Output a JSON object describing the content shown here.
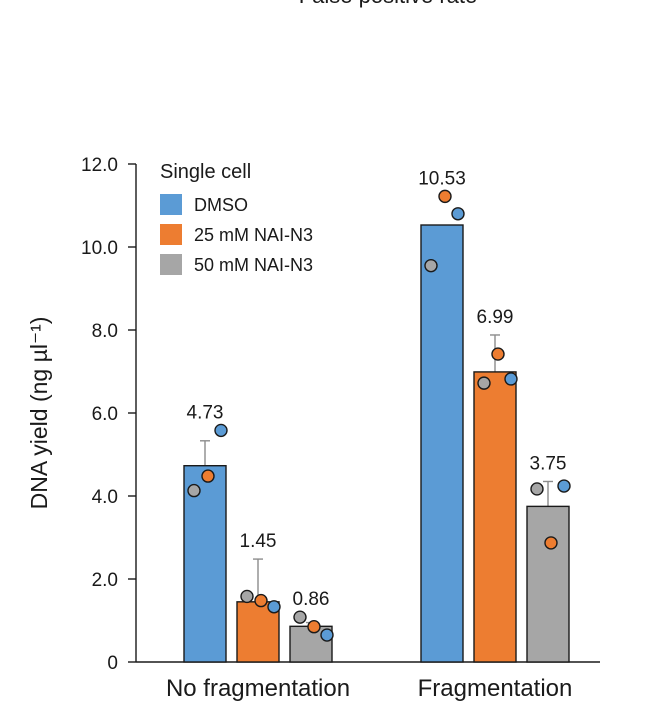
{
  "top_caption": "False positive rate",
  "chart_data": {
    "type": "bar",
    "ylabel": "DNA yield (ng µl⁻¹)",
    "ylim": [
      0,
      12
    ],
    "yticks": [
      "0",
      "2.0",
      "4.0",
      "6.0",
      "8.0",
      "10.0",
      "12.0"
    ],
    "categories": [
      "No fragmentation",
      "Fragmentation"
    ],
    "legend_title": "Single cell",
    "legend_position": "top-left",
    "series": [
      {
        "name": "DMSO",
        "color": "#5b9bd5",
        "values": [
          4.73,
          10.53
        ],
        "value_labels": [
          "4.73",
          "10.53"
        ],
        "error_upper": [
          5.33,
          null
        ],
        "points": [
          [
            4.13,
            4.48,
            5.58
          ],
          [
            9.55,
            11.22,
            10.8
          ]
        ],
        "point_colors": [
          "#a6a6a6",
          "#ed7d31",
          "#5b9bd5"
        ]
      },
      {
        "name": "25 mM NAI-N3",
        "color": "#ed7d31",
        "values": [
          1.45,
          6.99
        ],
        "value_labels": [
          "1.45",
          "6.99"
        ],
        "error_upper": [
          2.48,
          7.88
        ],
        "points": [
          [
            1.58,
            1.48,
            1.33
          ],
          [
            6.72,
            7.42,
            6.82
          ]
        ],
        "point_colors": [
          "#a6a6a6",
          "#ed7d31",
          "#5b9bd5"
        ]
      },
      {
        "name": "50 mM NAI-N3",
        "color": "#a6a6a6",
        "values": [
          0.86,
          3.75
        ],
        "value_labels": [
          "0.86",
          "3.75"
        ],
        "error_upper": [
          0.95,
          4.35
        ],
        "points": [
          [
            1.08,
            0.85,
            0.65
          ],
          [
            4.17,
            2.87,
            4.24
          ]
        ],
        "point_colors": [
          "#a6a6a6",
          "#ed7d31",
          "#5b9bd5"
        ]
      }
    ]
  }
}
